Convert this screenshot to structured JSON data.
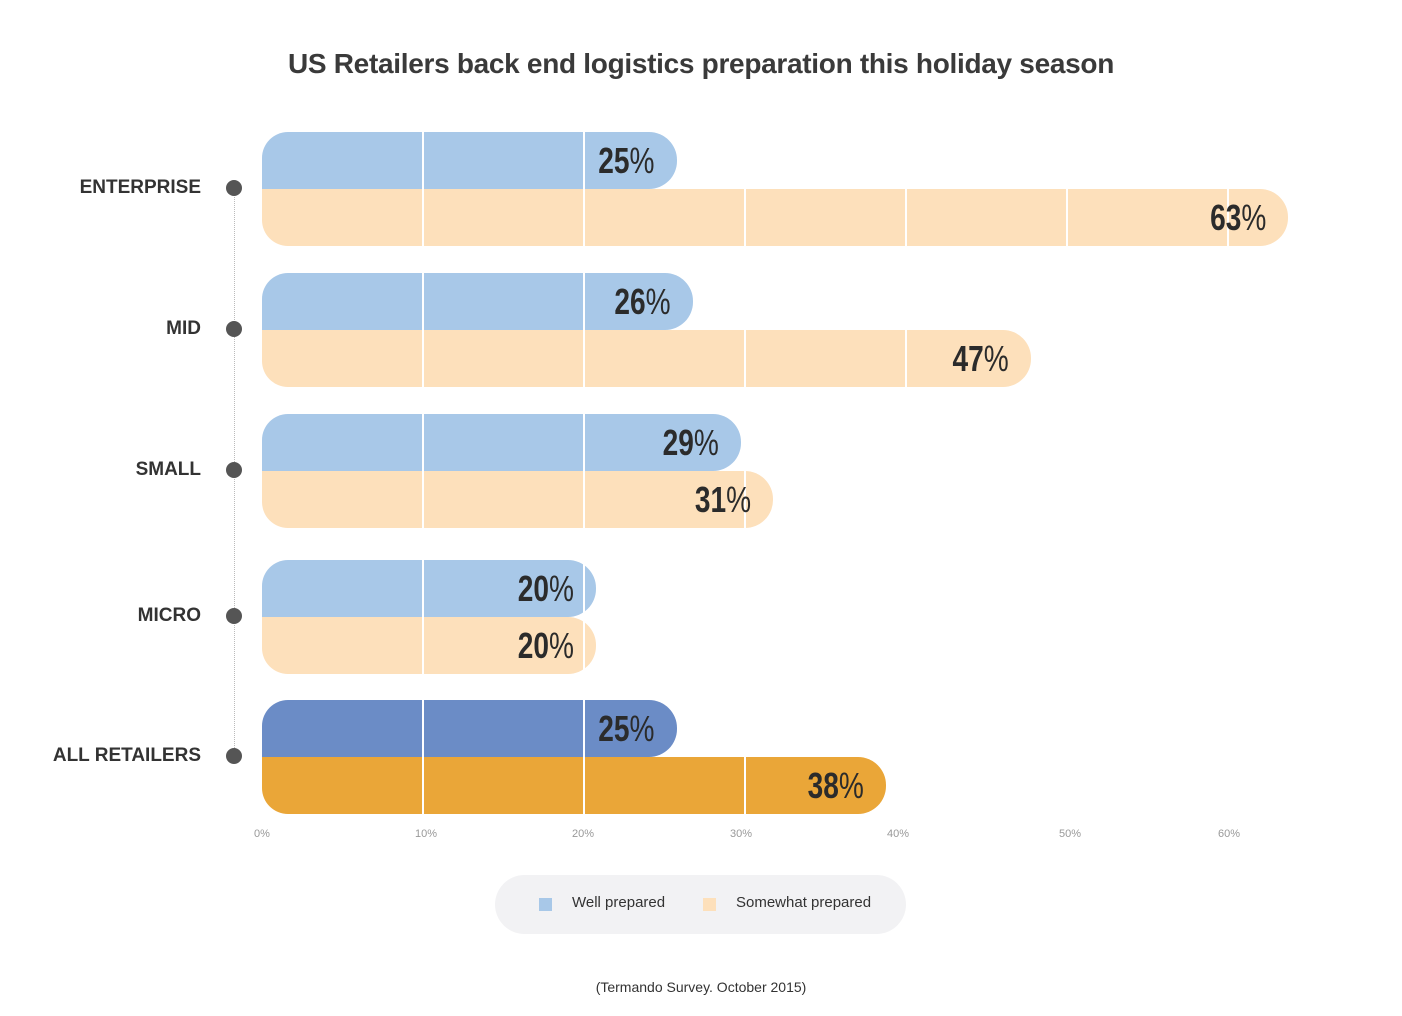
{
  "chart_data": {
    "type": "bar",
    "orientation": "horizontal",
    "title": "US Retailers back end logistics preparation this holiday season",
    "categories": [
      "ENTERPRISE",
      "MID",
      "SMALL",
      "MICRO",
      "ALL RETAILERS"
    ],
    "series": [
      {
        "name": "Well prepared",
        "values": [
          25,
          26,
          29,
          20,
          25
        ],
        "color": "#a8c8e8",
        "highlight_color": "#6b8cc6"
      },
      {
        "name": "Somewhat prepared",
        "values": [
          63,
          47,
          31,
          20,
          38
        ],
        "color": "#fde0bb",
        "highlight_color": "#eaa638"
      }
    ],
    "value_suffix": "%",
    "xlim": [
      0,
      60
    ],
    "x_ticks": [
      "0%",
      "10%",
      "20%",
      "30%",
      "40%",
      "50%",
      "60%"
    ],
    "legend_position": "bottom",
    "xlabel": "",
    "ylabel": ""
  },
  "source": "(Termando Survey. October 2015)"
}
